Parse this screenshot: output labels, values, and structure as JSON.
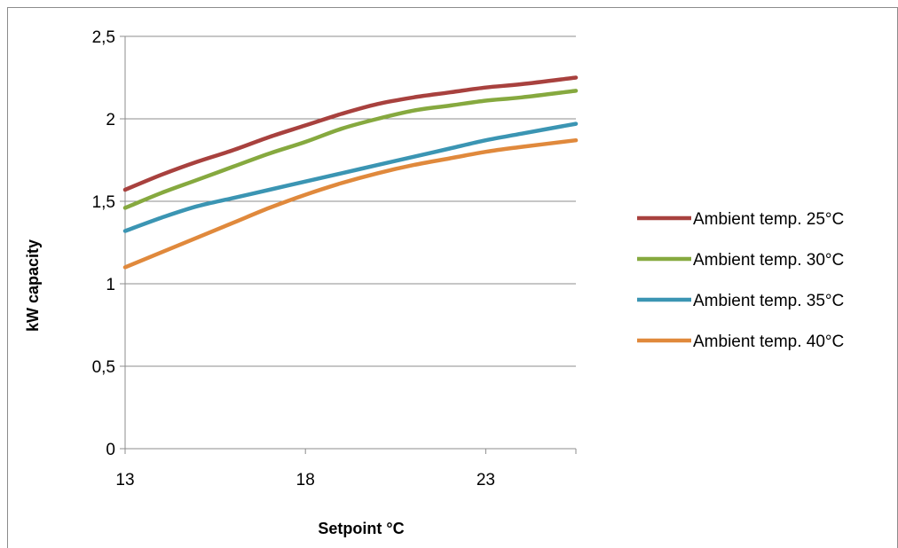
{
  "chart_data": {
    "type": "line",
    "xlabel": "Setpoint °C",
    "ylabel": "kW capacity",
    "xlim": [
      13,
      25.5
    ],
    "ylim": [
      0,
      2.5
    ],
    "x_ticks": [
      "13",
      "18",
      "23"
    ],
    "y_ticks": [
      "0",
      "0,5",
      "1",
      "1,5",
      "2",
      "2,5"
    ],
    "grid": "horizontal",
    "legend_position": "right",
    "series": [
      {
        "name": "Ambient temp. 25°C",
        "color": "#a8413e",
        "x": [
          13,
          14,
          15,
          16,
          17,
          18,
          19,
          20,
          21,
          22,
          23,
          24,
          25.5
        ],
        "values": [
          1.57,
          1.66,
          1.74,
          1.81,
          1.89,
          1.96,
          2.03,
          2.09,
          2.13,
          2.16,
          2.19,
          2.21,
          2.25
        ]
      },
      {
        "name": "Ambient temp. 30°C",
        "color": "#86a93f",
        "x": [
          13,
          14,
          15,
          16,
          17,
          18,
          19,
          20,
          21,
          22,
          23,
          24,
          25.5
        ],
        "values": [
          1.46,
          1.55,
          1.63,
          1.71,
          1.79,
          1.86,
          1.94,
          2.0,
          2.05,
          2.08,
          2.11,
          2.13,
          2.17
        ]
      },
      {
        "name": "Ambient temp. 35°C",
        "color": "#3b95b3",
        "x": [
          13,
          14,
          15,
          16,
          17,
          18,
          19,
          20,
          21,
          22,
          23,
          24,
          25.5
        ],
        "values": [
          1.32,
          1.4,
          1.47,
          1.52,
          1.57,
          1.62,
          1.67,
          1.72,
          1.77,
          1.82,
          1.87,
          1.91,
          1.97
        ]
      },
      {
        "name": "Ambient temp. 40°C",
        "color": "#e0893c",
        "x": [
          13,
          14,
          15,
          16,
          17,
          18,
          19,
          20,
          21,
          22,
          23,
          24,
          25.5
        ],
        "values": [
          1.1,
          1.19,
          1.28,
          1.37,
          1.46,
          1.54,
          1.61,
          1.67,
          1.72,
          1.76,
          1.8,
          1.83,
          1.87
        ]
      }
    ]
  }
}
